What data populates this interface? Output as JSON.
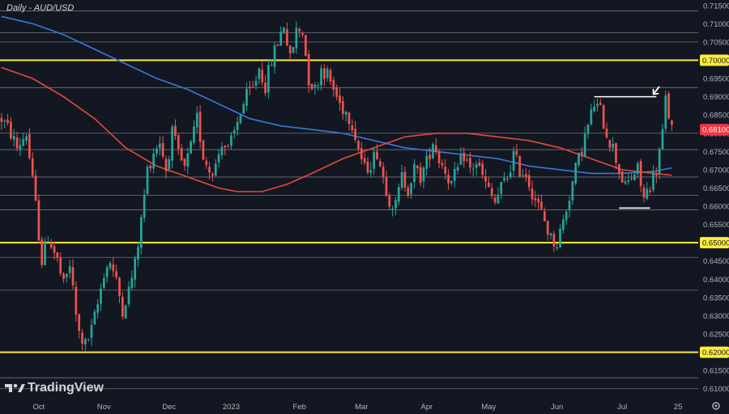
{
  "chart_data": {
    "type": "candlestick",
    "title": "Daily - AUD/USD",
    "watermark": "TradingView",
    "ylim": [
      0.6075,
      0.7165
    ],
    "y_ticks": [
      "0.71500",
      "0.71000",
      "0.70500",
      "0.70000",
      "0.69500",
      "0.69000",
      "0.68500",
      "0.68000",
      "0.67500",
      "0.67000",
      "0.66500",
      "0.66000",
      "0.65500",
      "0.65000",
      "0.64500",
      "0.64000",
      "0.63500",
      "0.63000",
      "0.62500",
      "0.62000",
      "0.61500",
      "0.61000"
    ],
    "x_ticks": [
      {
        "label": "Oct",
        "index": 12
      },
      {
        "label": "Nov",
        "index": 33
      },
      {
        "label": "Dec",
        "index": 54
      },
      {
        "label": "2023",
        "index": 74
      },
      {
        "label": "Feb",
        "index": 96
      },
      {
        "label": "Mar",
        "index": 116
      },
      {
        "label": "Apr",
        "index": 137
      },
      {
        "label": "May",
        "index": 157
      },
      {
        "label": "Jun",
        "index": 179
      },
      {
        "label": "Jul",
        "index": 200
      },
      {
        "label": "25",
        "index": 218
      }
    ],
    "total_slots": 225,
    "yellow_levels": [
      0.7,
      0.65,
      0.62
    ],
    "gray_levels": [
      0.7135,
      0.7075,
      0.705,
      0.6925,
      0.68,
      0.6755,
      0.668,
      0.663,
      0.659,
      0.646,
      0.637,
      0.613,
      0.61
    ],
    "level_tags": [
      {
        "value": 0.7,
        "label": "0.70000",
        "color": "#ffeb3b"
      },
      {
        "value": 0.681,
        "label": "0.68100",
        "color": "#f23645"
      },
      {
        "value": 0.65,
        "label": "0.65000",
        "color": "#ffeb3b"
      },
      {
        "value": 0.62,
        "label": "0.62000",
        "color": "#ffeb3b"
      }
    ],
    "annotations": {
      "resistance_line": {
        "value": 0.69,
        "from_index": 191,
        "to_index": 211
      },
      "support_line": {
        "value": 0.6595,
        "from_index": 199,
        "to_index": 209
      },
      "arrow_index": 209
    },
    "up_color": "#26a69a",
    "down_color": "#ef5350",
    "ma_fast_color": "#e34a3d",
    "ma_slow_color": "#3a78d6",
    "close_path": [
      [
        0,
        0.684
      ],
      [
        3,
        0.68
      ],
      [
        5,
        0.676
      ],
      [
        8,
        0.68
      ],
      [
        11,
        0.66
      ],
      [
        13,
        0.645
      ],
      [
        15,
        0.652
      ],
      [
        18,
        0.645
      ],
      [
        20,
        0.638
      ],
      [
        22,
        0.644
      ],
      [
        24,
        0.63
      ],
      [
        25,
        0.625
      ],
      [
        27,
        0.622
      ],
      [
        29,
        0.626
      ],
      [
        31,
        0.633
      ],
      [
        33,
        0.642
      ],
      [
        35,
        0.645
      ],
      [
        37,
        0.639
      ],
      [
        39,
        0.632
      ],
      [
        41,
        0.637
      ],
      [
        43,
        0.644
      ],
      [
        45,
        0.656
      ],
      [
        47,
        0.67
      ],
      [
        49,
        0.675
      ],
      [
        51,
        0.678
      ],
      [
        53,
        0.67
      ],
      [
        55,
        0.68
      ],
      [
        57,
        0.674
      ],
      [
        59,
        0.67
      ],
      [
        61,
        0.676
      ],
      [
        63,
        0.684
      ],
      [
        65,
        0.674
      ],
      [
        67,
        0.67
      ],
      [
        69,
        0.671
      ],
      [
        71,
        0.678
      ],
      [
        73,
        0.675
      ],
      [
        75,
        0.68
      ],
      [
        77,
        0.686
      ],
      [
        79,
        0.69
      ],
      [
        81,
        0.692
      ],
      [
        83,
        0.698
      ],
      [
        85,
        0.693
      ],
      [
        87,
        0.7
      ],
      [
        89,
        0.705
      ],
      [
        91,
        0.71
      ],
      [
        93,
        0.7
      ],
      [
        95,
        0.708
      ],
      [
        97,
        0.708
      ],
      [
        99,
        0.695
      ],
      [
        101,
        0.692
      ],
      [
        103,
        0.698
      ],
      [
        105,
        0.696
      ],
      [
        107,
        0.692
      ],
      [
        109,
        0.688
      ],
      [
        111,
        0.686
      ],
      [
        113,
        0.683
      ],
      [
        115,
        0.676
      ],
      [
        117,
        0.67
      ],
      [
        119,
        0.672
      ],
      [
        121,
        0.675
      ],
      [
        123,
        0.668
      ],
      [
        125,
        0.662
      ],
      [
        127,
        0.66
      ],
      [
        129,
        0.668
      ],
      [
        131,
        0.665
      ],
      [
        133,
        0.67
      ],
      [
        135,
        0.668
      ],
      [
        137,
        0.672
      ],
      [
        139,
        0.678
      ],
      [
        141,
        0.673
      ],
      [
        143,
        0.67
      ],
      [
        145,
        0.666
      ],
      [
        147,
        0.67
      ],
      [
        149,
        0.674
      ],
      [
        151,
        0.67
      ],
      [
        153,
        0.672
      ],
      [
        155,
        0.668
      ],
      [
        157,
        0.664
      ],
      [
        159,
        0.661
      ],
      [
        161,
        0.665
      ],
      [
        163,
        0.668
      ],
      [
        165,
        0.674
      ],
      [
        167,
        0.67
      ],
      [
        169,
        0.669
      ],
      [
        171,
        0.664
      ],
      [
        173,
        0.66
      ],
      [
        175,
        0.656
      ],
      [
        177,
        0.651
      ],
      [
        179,
        0.65
      ],
      [
        181,
        0.656
      ],
      [
        183,
        0.663
      ],
      [
        185,
        0.67
      ],
      [
        187,
        0.676
      ],
      [
        189,
        0.682
      ],
      [
        191,
        0.688
      ],
      [
        193,
        0.686
      ],
      [
        195,
        0.68
      ],
      [
        197,
        0.676
      ],
      [
        199,
        0.67
      ],
      [
        201,
        0.665
      ],
      [
        203,
        0.668
      ],
      [
        205,
        0.67
      ],
      [
        207,
        0.662
      ],
      [
        209,
        0.666
      ],
      [
        211,
        0.67
      ],
      [
        212,
        0.675
      ],
      [
        213,
        0.68
      ],
      [
        214,
        0.689
      ],
      [
        215,
        0.685
      ],
      [
        216,
        0.681
      ]
    ],
    "ma_fast_path": [
      [
        0,
        0.698
      ],
      [
        10,
        0.695
      ],
      [
        20,
        0.69
      ],
      [
        30,
        0.684
      ],
      [
        40,
        0.676
      ],
      [
        50,
        0.671
      ],
      [
        60,
        0.668
      ],
      [
        70,
        0.665
      ],
      [
        76,
        0.664
      ],
      [
        84,
        0.664
      ],
      [
        92,
        0.666
      ],
      [
        100,
        0.669
      ],
      [
        110,
        0.673
      ],
      [
        120,
        0.676
      ],
      [
        130,
        0.679
      ],
      [
        140,
        0.68
      ],
      [
        150,
        0.68
      ],
      [
        160,
        0.679
      ],
      [
        170,
        0.678
      ],
      [
        180,
        0.676
      ],
      [
        190,
        0.673
      ],
      [
        200,
        0.67
      ],
      [
        210,
        0.669
      ],
      [
        216,
        0.6685
      ]
    ],
    "ma_slow_path": [
      [
        0,
        0.712
      ],
      [
        10,
        0.71
      ],
      [
        20,
        0.707
      ],
      [
        30,
        0.703
      ],
      [
        40,
        0.699
      ],
      [
        50,
        0.695
      ],
      [
        60,
        0.692
      ],
      [
        70,
        0.688
      ],
      [
        80,
        0.684
      ],
      [
        90,
        0.682
      ],
      [
        100,
        0.681
      ],
      [
        110,
        0.68
      ],
      [
        120,
        0.678
      ],
      [
        130,
        0.676
      ],
      [
        140,
        0.675
      ],
      [
        150,
        0.674
      ],
      [
        160,
        0.673
      ],
      [
        170,
        0.671
      ],
      [
        180,
        0.67
      ],
      [
        190,
        0.669
      ],
      [
        200,
        0.669
      ],
      [
        210,
        0.6695
      ],
      [
        216,
        0.6705
      ]
    ]
  }
}
